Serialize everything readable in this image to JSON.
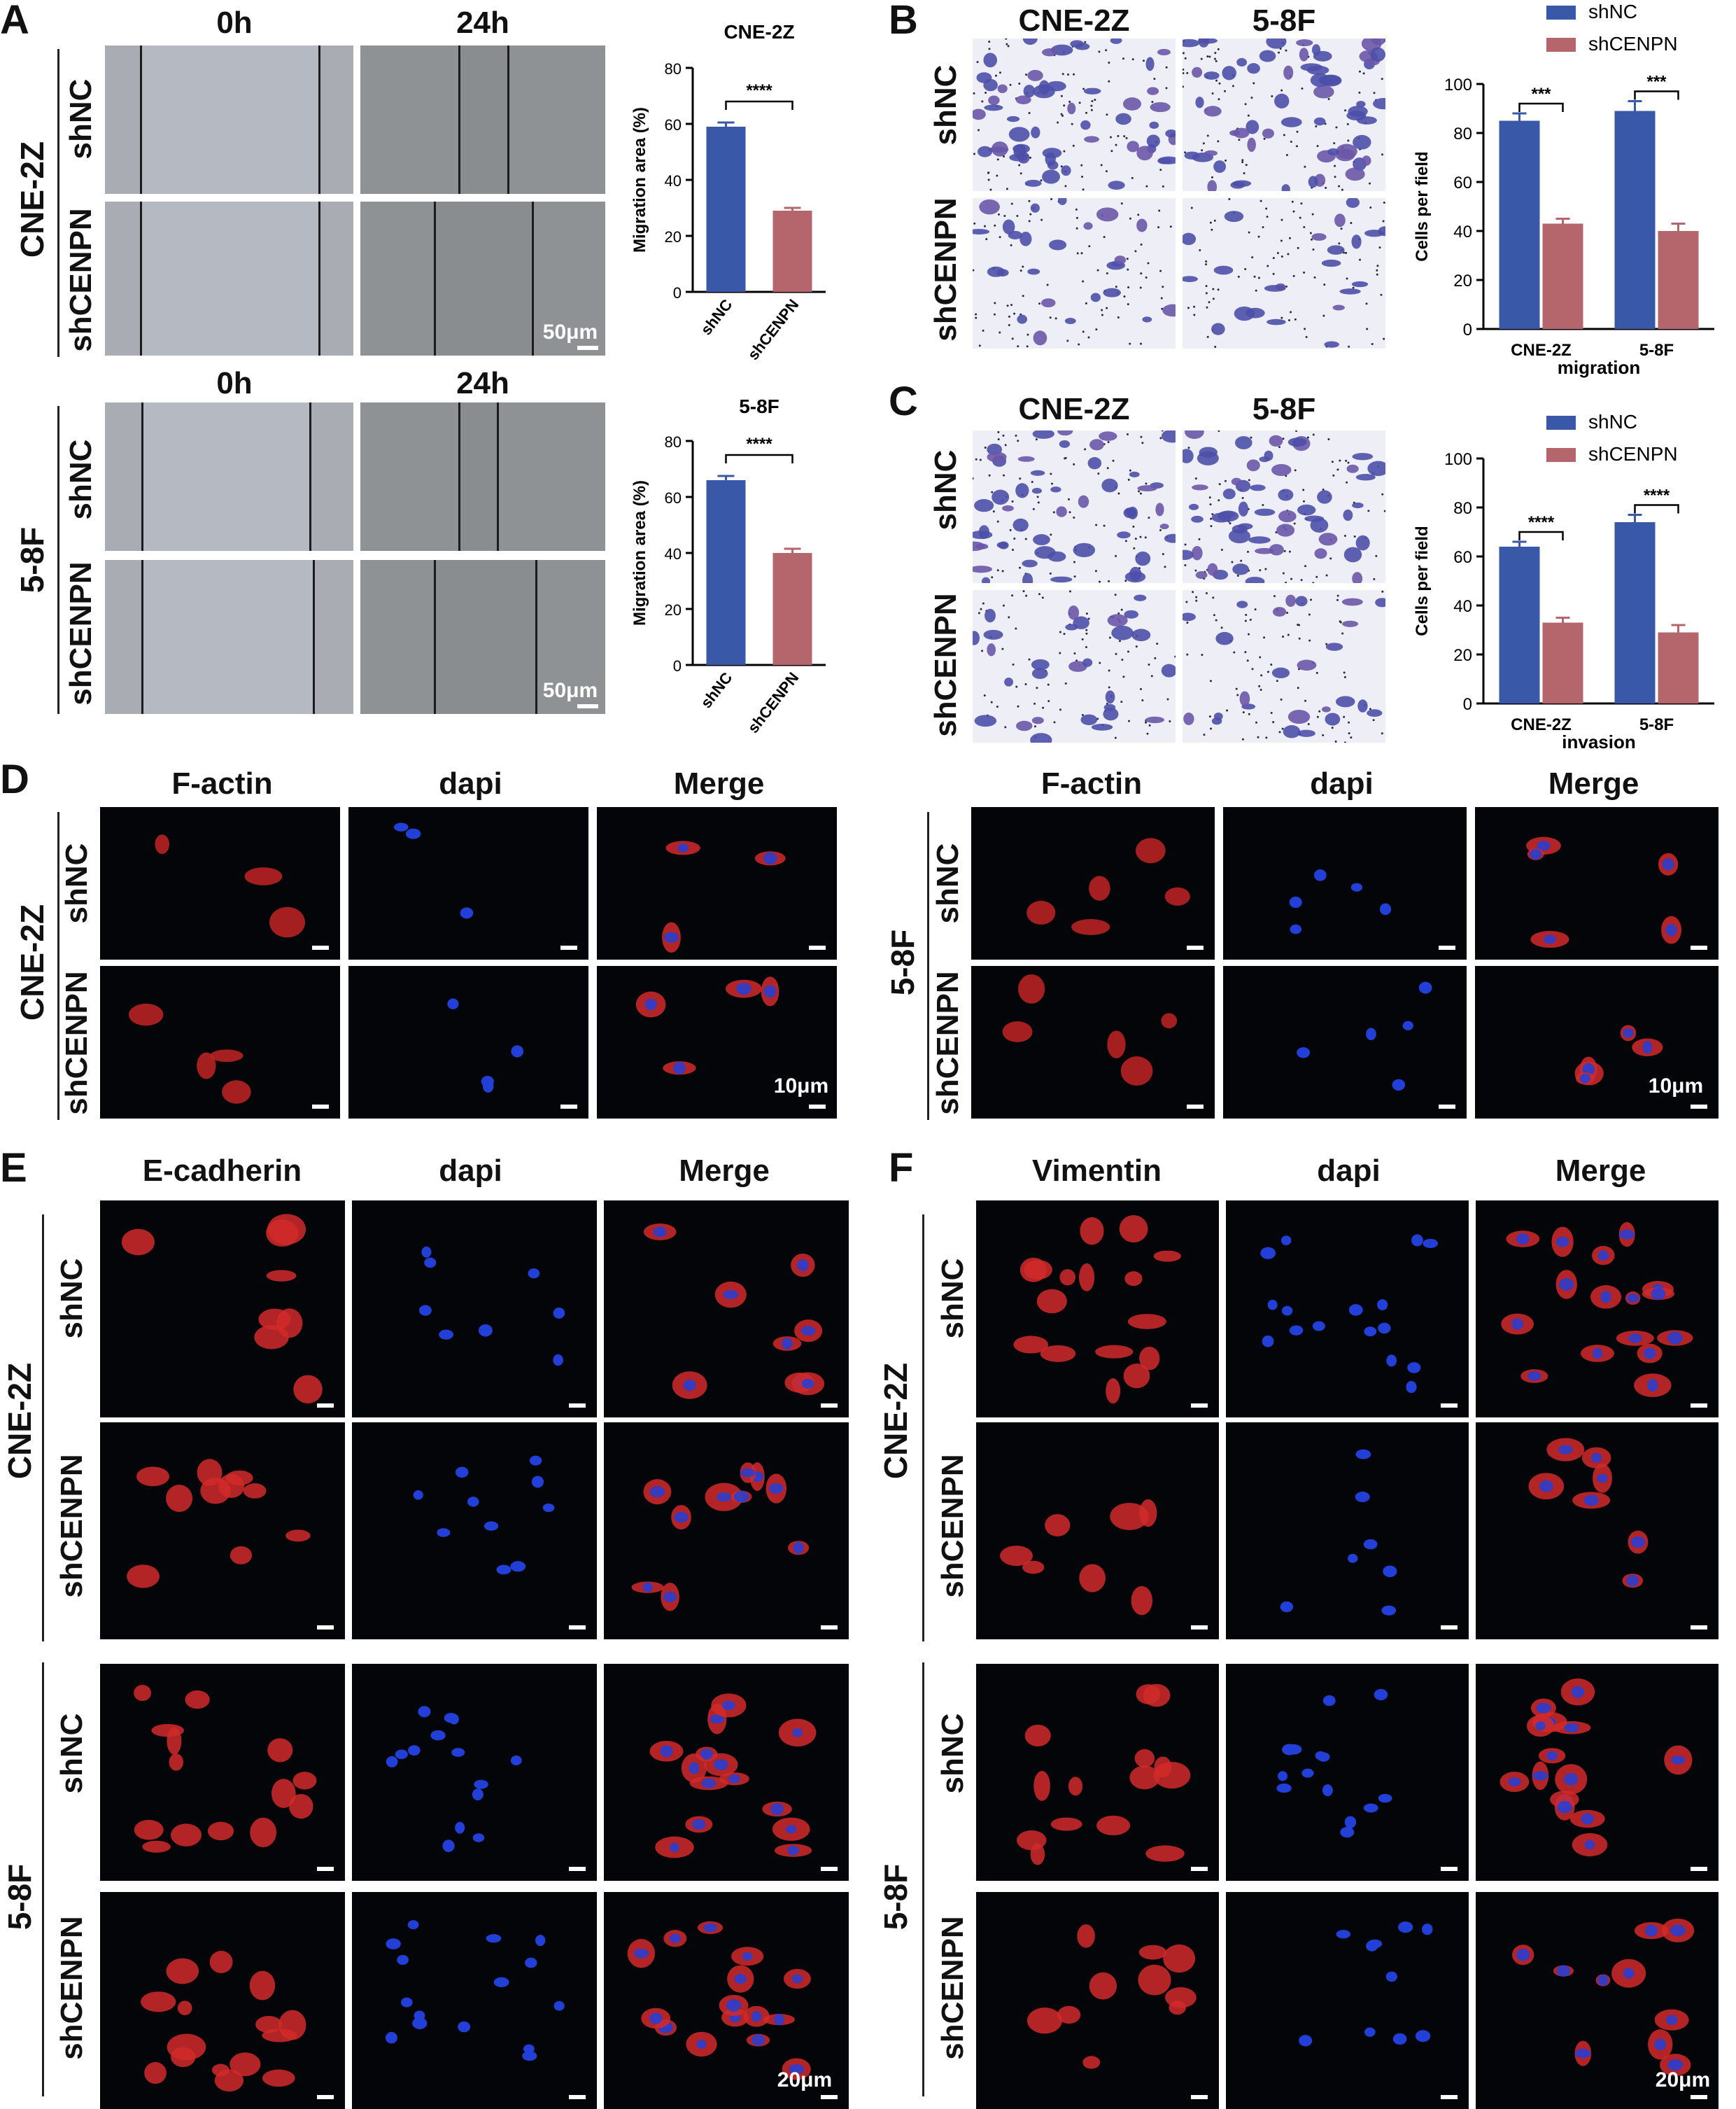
{
  "panels": {
    "A": {
      "letter": "A",
      "col_headers": [
        "0h",
        "24h"
      ],
      "groups": [
        {
          "name": "CNE-2Z",
          "rows": [
            "shNC",
            "shCENPN"
          ],
          "scale": "50μm"
        },
        {
          "name": "5-8F",
          "rows": [
            "shNC",
            "shCENPN"
          ],
          "scale": "50μm"
        }
      ]
    },
    "B": {
      "letter": "B",
      "col_headers": [
        "CNE-2Z",
        "5-8F"
      ],
      "rows": [
        "shNC",
        "shCENPN"
      ]
    },
    "C": {
      "letter": "C",
      "col_headers": [
        "CNE-2Z",
        "5-8F"
      ],
      "rows": [
        "shNC",
        "shCENPN"
      ]
    },
    "D": {
      "letter": "D",
      "col_headers": [
        "F-actin",
        "dapi",
        "Merge"
      ],
      "groups": [
        {
          "name": "CNE-2Z",
          "rows": [
            "shNC",
            "shCENPN"
          ],
          "scale": "10μm"
        },
        {
          "name": "5-8F",
          "rows": [
            "shNC",
            "shCENPN"
          ],
          "scale": "10μm"
        }
      ]
    },
    "E": {
      "letter": "E",
      "col_headers": [
        "E-cadherin",
        "dapi",
        "Merge"
      ],
      "groups": [
        {
          "name": "CNE-2Z",
          "rows": [
            "shNC",
            "shCENPN"
          ]
        },
        {
          "name": "5-8F",
          "rows": [
            "shNC",
            "shCENPN"
          ]
        }
      ],
      "scale": "20μm"
    },
    "F": {
      "letter": "F",
      "col_headers": [
        "Vimentin",
        "dapi",
        "Merge"
      ],
      "groups": [
        {
          "name": "CNE-2Z",
          "rows": [
            "shNC",
            "shCENPN"
          ]
        },
        {
          "name": "5-8F",
          "rows": [
            "shNC",
            "shCENPN"
          ]
        }
      ],
      "scale": "20μm"
    }
  },
  "colors": {
    "shNC": "#3a58a8",
    "shCENPN": "#b5656c",
    "fluor_bg": "#040508",
    "f_actin": "#c42020",
    "dapi": "#2038c8"
  },
  "chart_data": [
    {
      "id": "A-CNE2Z",
      "type": "bar",
      "title": "CNE-2Z",
      "ylabel": "Migration area (%)",
      "xlabel": "",
      "categories": [
        "shNC",
        "shCENPN"
      ],
      "values": [
        59,
        29
      ],
      "errors": [
        1.5,
        1
      ],
      "ylim": [
        0,
        80
      ],
      "yticks": [
        0,
        20,
        40,
        60,
        80
      ],
      "significance": "****",
      "colors": [
        "#3a58a8",
        "#b5656c"
      ]
    },
    {
      "id": "A-58F",
      "type": "bar",
      "title": "5-8F",
      "ylabel": "Migration area (%)",
      "xlabel": "",
      "categories": [
        "shNC",
        "shCENPN"
      ],
      "values": [
        66,
        40
      ],
      "errors": [
        1.5,
        1.5
      ],
      "ylim": [
        0,
        80
      ],
      "yticks": [
        0,
        20,
        40,
        60,
        80
      ],
      "significance": "****",
      "colors": [
        "#3a58a8",
        "#b5656c"
      ]
    },
    {
      "id": "B-migration",
      "type": "bar",
      "title": "",
      "ylabel": "Cells per field",
      "xlabel": "migration",
      "categories": [
        "CNE-2Z",
        "5-8F"
      ],
      "series": [
        {
          "name": "shNC",
          "values": [
            85,
            89
          ],
          "errors": [
            3,
            4
          ]
        },
        {
          "name": "shCENPN",
          "values": [
            43,
            40
          ],
          "errors": [
            2,
            3
          ]
        }
      ],
      "ylim": [
        0,
        100
      ],
      "yticks": [
        0,
        20,
        40,
        60,
        80,
        100
      ],
      "significance": [
        "***",
        "***"
      ],
      "legend": "top-right",
      "colors": [
        "#3a58a8",
        "#b5656c"
      ]
    },
    {
      "id": "C-invasion",
      "type": "bar",
      "title": "",
      "ylabel": "Cells per field",
      "xlabel": "invasion",
      "categories": [
        "CNE-2Z",
        "5-8F"
      ],
      "series": [
        {
          "name": "shNC",
          "values": [
            64,
            74
          ],
          "errors": [
            2,
            3
          ]
        },
        {
          "name": "shCENPN",
          "values": [
            33,
            29
          ],
          "errors": [
            2,
            3
          ]
        }
      ],
      "ylim": [
        0,
        100
      ],
      "yticks": [
        0,
        20,
        40,
        60,
        80,
        100
      ],
      "significance": [
        "****",
        "****"
      ],
      "legend": "top-right",
      "colors": [
        "#3a58a8",
        "#b5656c"
      ]
    }
  ]
}
